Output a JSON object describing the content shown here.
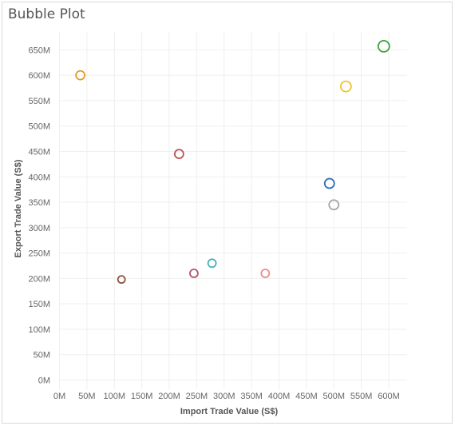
{
  "chart_data": {
    "type": "scatter",
    "title": "Bubble Plot",
    "xlabel": "Import Trade Value (S$)",
    "ylabel": "Export Trade Value (S$)",
    "xlim": [
      0,
      620
    ],
    "ylim": [
      0,
      670
    ],
    "unit": "M",
    "x_ticks": [
      "0M",
      "50M",
      "100M",
      "150M",
      "200M",
      "250M",
      "300M",
      "350M",
      "400M",
      "450M",
      "500M",
      "550M",
      "600M"
    ],
    "y_ticks": [
      "0M",
      "50M",
      "100M",
      "150M",
      "200M",
      "250M",
      "300M",
      "350M",
      "400M",
      "450M",
      "500M",
      "550M",
      "600M",
      "650M"
    ],
    "grid": true,
    "points": [
      {
        "x": 38,
        "y": 600,
        "size": 9,
        "color": "#e39a2a"
      },
      {
        "x": 113,
        "y": 198,
        "size": 7,
        "color": "#8f4f3c"
      },
      {
        "x": 218,
        "y": 445,
        "size": 9,
        "color": "#c0504d"
      },
      {
        "x": 245,
        "y": 210,
        "size": 8,
        "color": "#b5586a"
      },
      {
        "x": 278,
        "y": 230,
        "size": 8,
        "color": "#4cb0b8"
      },
      {
        "x": 375,
        "y": 210,
        "size": 8,
        "color": "#f08a8f"
      },
      {
        "x": 492,
        "y": 387,
        "size": 10,
        "color": "#2e6db4"
      },
      {
        "x": 500,
        "y": 345,
        "size": 10,
        "color": "#a6a6a6"
      },
      {
        "x": 522,
        "y": 578,
        "size": 11,
        "color": "#f2c12e"
      },
      {
        "x": 591,
        "y": 657,
        "size": 12,
        "color": "#3aa33a"
      }
    ]
  }
}
